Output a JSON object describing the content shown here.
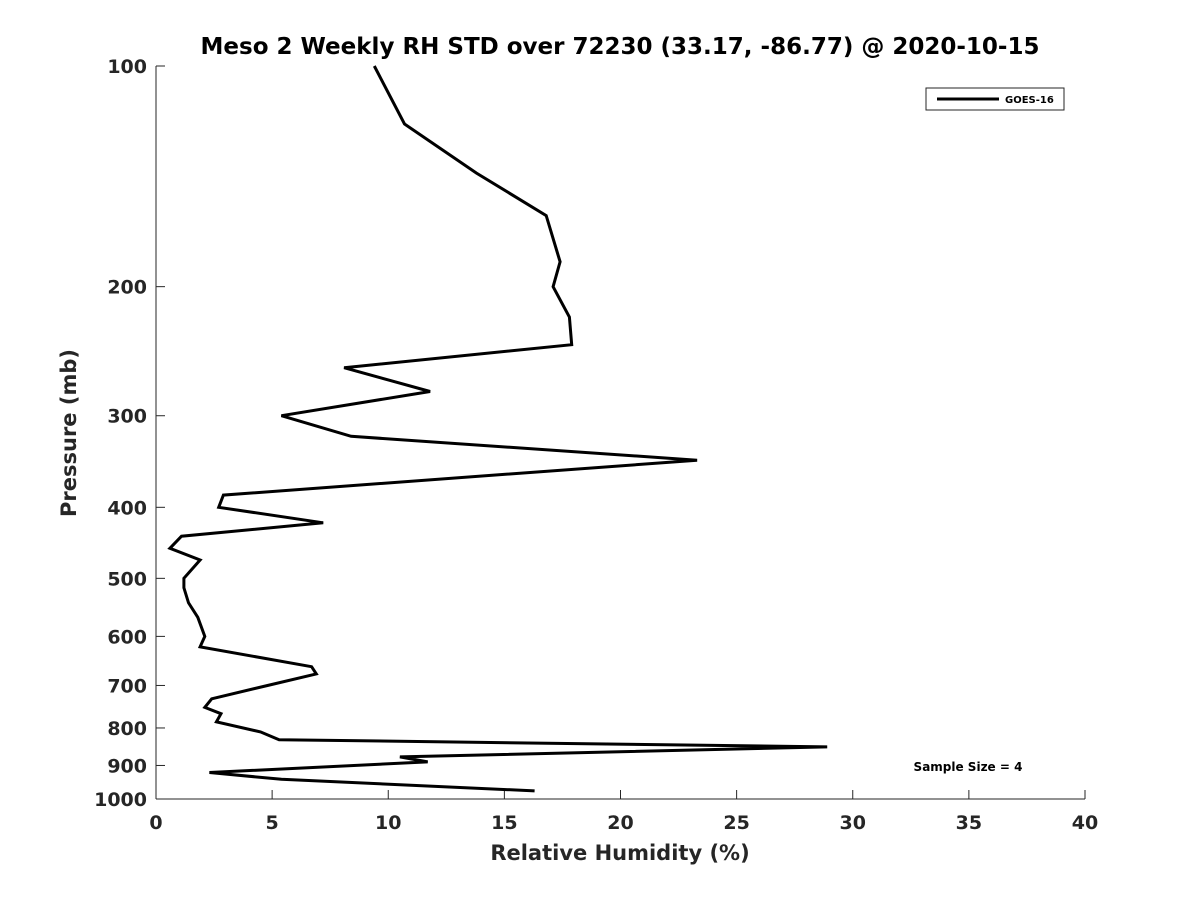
{
  "chart_data": {
    "type": "line",
    "title": "Meso 2 Weekly RH STD over 72230 (33.17, -86.77) @ 2020-10-15",
    "xlabel": "Relative Humidity (%)",
    "ylabel": "Pressure (mb)",
    "xlim": [
      0,
      40
    ],
    "ylim": [
      100,
      1000
    ],
    "yscale": "log",
    "yreversed": true,
    "grid": false,
    "x_ticks": [
      0,
      5,
      10,
      15,
      20,
      25,
      30,
      35,
      40
    ],
    "y_ticks": [
      100,
      200,
      300,
      400,
      500,
      600,
      700,
      800,
      900,
      1000
    ],
    "legend": {
      "position": "top-right",
      "entries": [
        "GOES-16"
      ]
    },
    "annotation": "Sample Size = 4",
    "series": [
      {
        "name": "GOES-16",
        "color": "#000000",
        "x": [
          9.4,
          10.7,
          13.8,
          16.8,
          17.4,
          17.1,
          17.8,
          17.9,
          8.1,
          11.8,
          5.4,
          8.4,
          23.3,
          2.9,
          2.7,
          7.2,
          1.1,
          0.6,
          1.9,
          1.2,
          1.2,
          1.4,
          1.8,
          2.1,
          1.9,
          6.7,
          6.9,
          4.8,
          2.4,
          2.1,
          2.8,
          2.6,
          4.5,
          5.3,
          28.9,
          10.5,
          11.7,
          2.3,
          5.4,
          16.3
        ],
        "y": [
          100,
          120,
          140,
          160,
          185,
          200,
          220,
          240,
          258,
          278,
          300,
          320,
          345,
          385,
          400,
          420,
          438,
          455,
          472,
          500,
          515,
          540,
          565,
          600,
          620,
          660,
          675,
          700,
          730,
          750,
          765,
          785,
          810,
          830,
          849,
          876,
          890,
          920,
          940,
          975
        ]
      }
    ]
  }
}
